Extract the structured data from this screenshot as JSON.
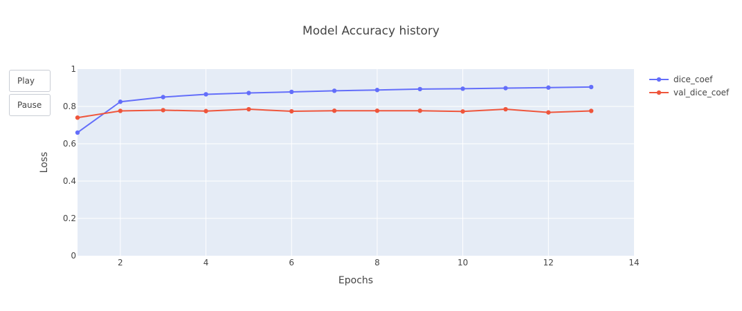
{
  "controls": {
    "play_label": "Play",
    "pause_label": "Pause"
  },
  "colors": {
    "plot_background": "#e5ecf6",
    "grid": "#ffffff",
    "text": "#444444"
  },
  "chart_data": {
    "type": "line",
    "title": "Model Accuracy history",
    "xlabel": "Epochs",
    "ylabel": "Loss",
    "xlim": [
      1,
      14
    ],
    "ylim": [
      0,
      1
    ],
    "x_ticks": [
      2,
      4,
      6,
      8,
      10,
      12,
      14
    ],
    "y_ticks": [
      0,
      0.2,
      0.4,
      0.6,
      0.8,
      1
    ],
    "grid": true,
    "legend_position": "top-right",
    "x": [
      1,
      2,
      3,
      4,
      5,
      6,
      7,
      8,
      9,
      10,
      11,
      12,
      13
    ],
    "series": [
      {
        "name": "dice_coef",
        "color": "#636efa",
        "values": [
          0.66,
          0.825,
          0.85,
          0.865,
          0.872,
          0.878,
          0.884,
          0.888,
          0.893,
          0.895,
          0.898,
          0.901,
          0.904
        ]
      },
      {
        "name": "val_dice_coef",
        "color": "#ef553b",
        "values": [
          0.74,
          0.776,
          0.78,
          0.775,
          0.785,
          0.774,
          0.777,
          0.777,
          0.777,
          0.773,
          0.785,
          0.768,
          0.776
        ]
      }
    ]
  }
}
